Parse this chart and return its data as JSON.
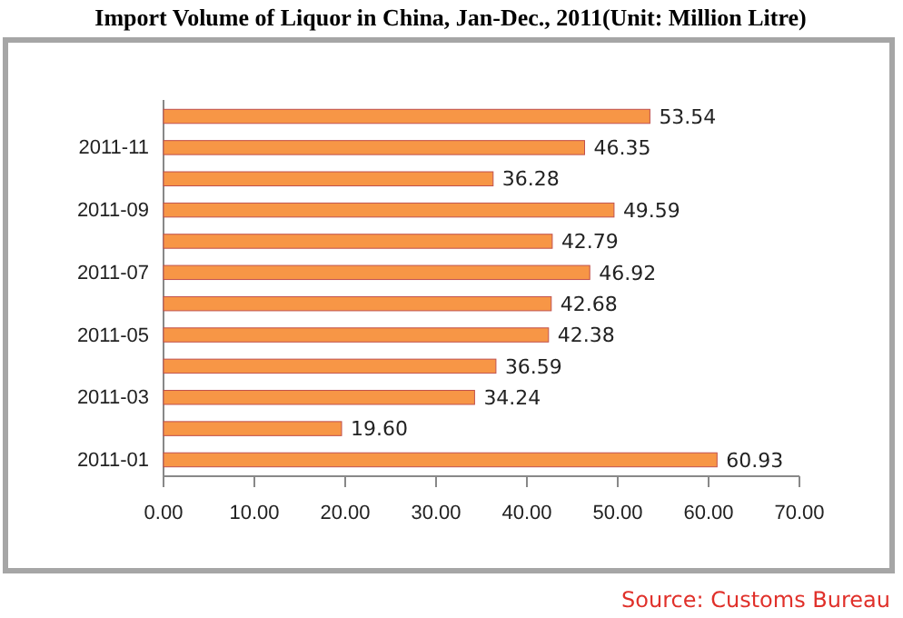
{
  "chart_data": {
    "type": "bar",
    "orientation": "horizontal",
    "title": "Import Volume of Liquor in China, Jan-Dec., 2011(Unit: Million Litre)",
    "categories": [
      null,
      "2011-11",
      null,
      "2011-09",
      null,
      "2011-07",
      null,
      "2011-05",
      null,
      "2011-03",
      null,
      "2011-01"
    ],
    "values": [
      53.54,
      46.35,
      36.28,
      49.59,
      42.79,
      46.92,
      42.68,
      42.38,
      36.59,
      34.24,
      19.6,
      60.93
    ],
    "color": "#f79646",
    "xlim": [
      0,
      70
    ],
    "xticks": [
      {
        "value": 0,
        "label": "0.00"
      },
      {
        "value": 10,
        "label": "10.00"
      },
      {
        "value": 20,
        "label": "20.00"
      },
      {
        "value": 30,
        "label": "30.00"
      },
      {
        "value": 40,
        "label": "40.00"
      },
      {
        "value": 50,
        "label": "50.00"
      },
      {
        "value": 60,
        "label": "60.00"
      },
      {
        "value": 70,
        "label": "70.00"
      }
    ],
    "value_labels": [
      "53.54",
      "46.35",
      "36.28",
      "49.59",
      "42.79",
      "46.92",
      "42.68",
      "42.38",
      "36.59",
      "34.24",
      "19.60",
      "60.93"
    ],
    "annotations": [
      "Source: Customs Bureau"
    ]
  }
}
